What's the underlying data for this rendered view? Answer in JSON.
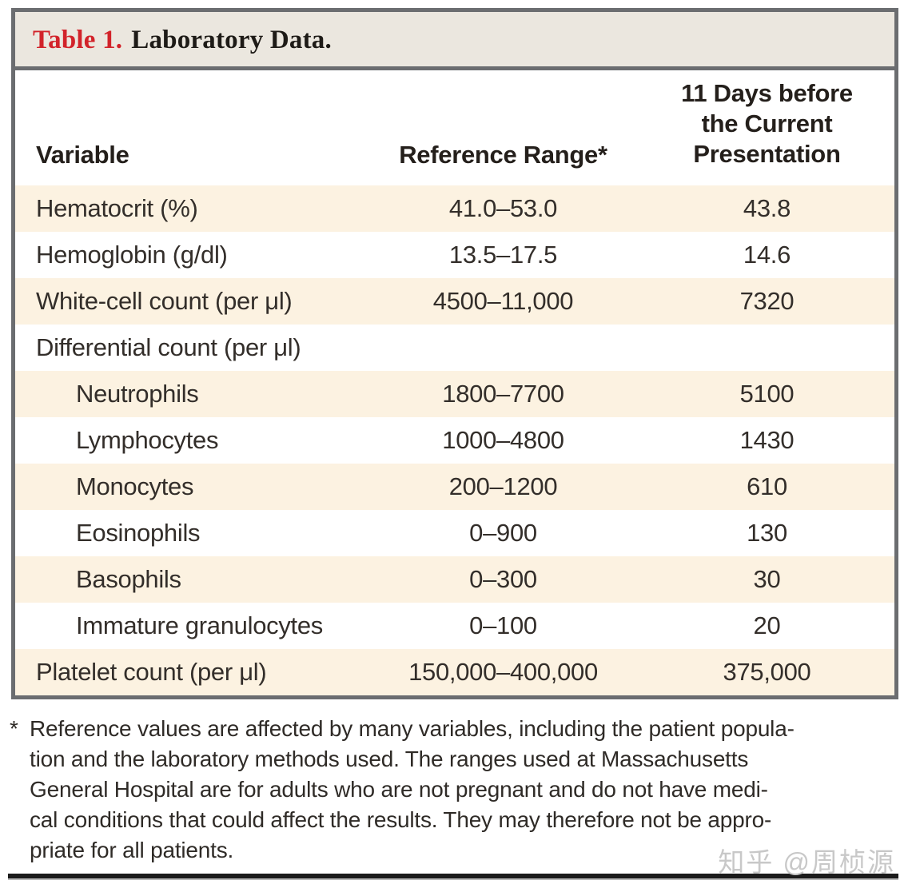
{
  "title": {
    "label": "Table 1.",
    "rest": "Laboratory Data."
  },
  "colors": {
    "accent_red": "#d2232a",
    "row_cream": "#fcf2e1",
    "title_band_bg": "#ebe7df",
    "border_gray": "#6b6d70",
    "text": "#332e2a",
    "watermark_gray": "#c8c8c8"
  },
  "table": {
    "columns": [
      {
        "label": "Variable"
      },
      {
        "label": "Reference Range*"
      },
      {
        "label": "11 Days before the Current Presentation"
      }
    ],
    "rows": [
      {
        "variable": "Hematocrit (%)",
        "range": "41.0–53.0",
        "value": "43.8",
        "indent": false
      },
      {
        "variable": "Hemoglobin (g/dl)",
        "range": "13.5–17.5",
        "value": "14.6",
        "indent": false
      },
      {
        "variable": "White-cell count (per μl)",
        "range": "4500–11,000",
        "value": "7320",
        "indent": false
      },
      {
        "variable": "Differential count (per μl)",
        "range": "",
        "value": "",
        "indent": false
      },
      {
        "variable": "Neutrophils",
        "range": "1800–7700",
        "value": "5100",
        "indent": true
      },
      {
        "variable": "Lymphocytes",
        "range": "1000–4800",
        "value": "1430",
        "indent": true
      },
      {
        "variable": "Monocytes",
        "range": "200–1200",
        "value": "610",
        "indent": true
      },
      {
        "variable": "Eosinophils",
        "range": "0–900",
        "value": "130",
        "indent": true
      },
      {
        "variable": "Basophils",
        "range": "0–300",
        "value": "30",
        "indent": true
      },
      {
        "variable": "Immature granulocytes",
        "range": "0–100",
        "value": "20",
        "indent": true
      },
      {
        "variable": "Platelet count (per μl)",
        "range": "150,000–400,000",
        "value": "375,000",
        "indent": false
      }
    ]
  },
  "footnote": {
    "marker": "*",
    "lines": [
      "Reference values are affected by many variables, including the patient popula-",
      "tion and the laboratory methods used. The ranges used at Massachusetts",
      "General Hospital are for adults who are not pregnant and do not have medi-",
      "cal conditions that could affect the results. They may therefore not be appro-",
      "priate for all patients."
    ]
  },
  "watermark": "知乎 @周桢源"
}
